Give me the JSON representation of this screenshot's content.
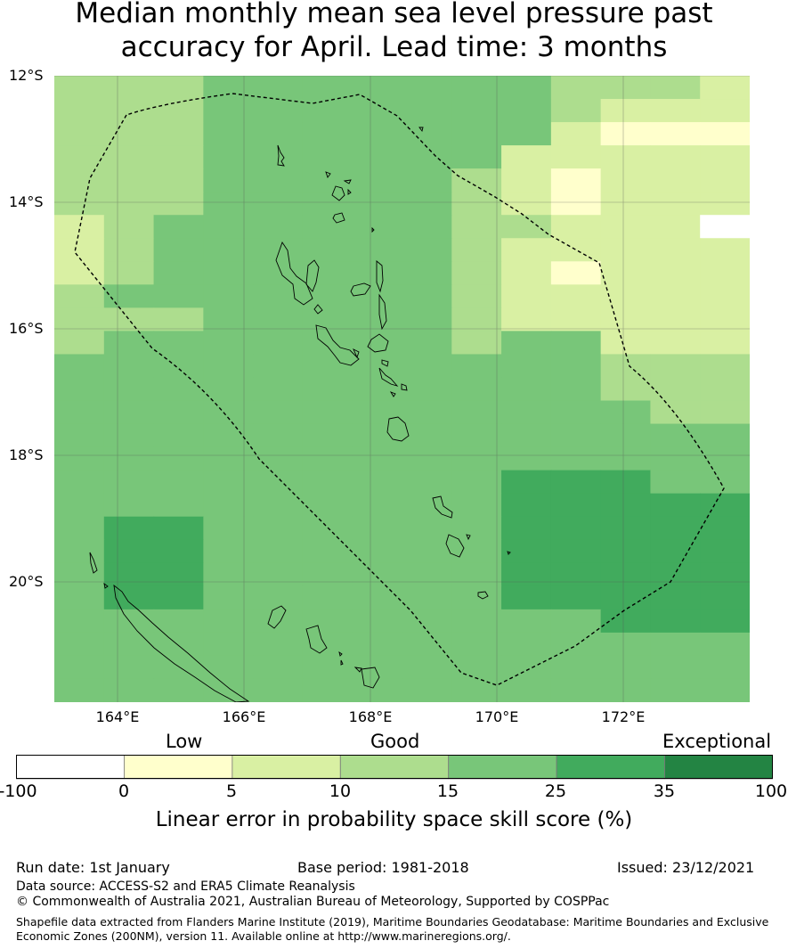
{
  "title_line1": "Median monthly mean sea level pressure past",
  "title_line2": "accuracy for April. Lead time: 3 months",
  "lat_ticks": [
    "12°S",
    "14°S",
    "16°S",
    "18°S",
    "20°S"
  ],
  "lon_ticks": [
    "164°E",
    "166°E",
    "168°E",
    "170°E",
    "172°E"
  ],
  "categories": {
    "low": "Low",
    "good": "Good",
    "exceptional": "Exceptional"
  },
  "colorbar": {
    "ticks": [
      "-100",
      "0",
      "5",
      "10",
      "15",
      "25",
      "35",
      "100"
    ],
    "colors": [
      "#ffffff",
      "#ffffcc",
      "#d9f0a3",
      "#addd8e",
      "#78c679",
      "#41ab5d",
      "#238443"
    ],
    "label": "Linear error in probability space skill score (%)"
  },
  "footer": {
    "run_date": "Run date: 1st January",
    "base_period": "Base period: 1981-2018",
    "issued": "Issued: 23/12/2021",
    "data_source": "Data source: ACCESS-S2 and ERA5 Climate Reanalysis",
    "copyright": "© Commonwealth of Australia 2021, Australian Bureau of Meteorology, Supported by COSPPac",
    "shapefile": "Shapefile data extracted from Flanders Marine Institute (2019), Maritime Boundaries Geodatabase: Maritime Boundaries and Exclusive Economic Zones (200NM), version 11. Available online at http://www.marineregions.org/."
  },
  "map_data": {
    "lon_range": [
      163.0,
      174.0
    ],
    "lat_range": [
      -21.9,
      -12.0
    ],
    "grid_note": "skill class per cell: 0=white(-100..0) 1=5 2=10 3=15 4=25 5=35",
    "grid": [
      "33344444443332",
      "33344444443222",
      "33344444442111",
      "33344444422222",
      "33344444321222",
      "33344444321222",
      "23444444332220",
      "23444444322222",
      "23444444321222",
      "34444444322222",
      "33344444322222",
      "34444444344222",
      "44444444444333",
      "44444444444333",
      "44444444444433",
      "44444444444444",
      "44444444444444",
      "44444444455544",
      "44444444455555",
      "45544444455555",
      "45544444455555",
      "45544444455555",
      "45544444455555",
      "44444444444555",
      "44444444444444",
      "44444444444444",
      "44444444444444"
    ]
  }
}
